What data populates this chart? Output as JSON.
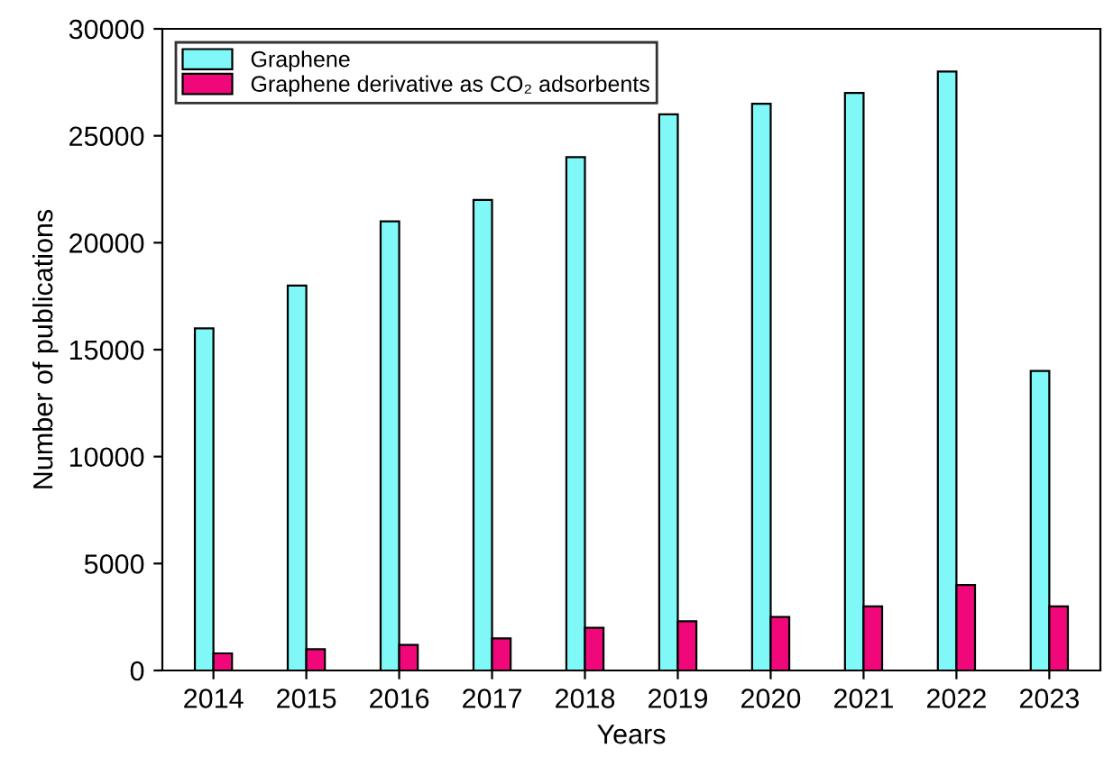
{
  "chart_data": {
    "type": "bar",
    "xlabel": "Years",
    "ylabel": "Number of publications",
    "categories": [
      "2014",
      "2015",
      "2016",
      "2017",
      "2018",
      "2019",
      "2020",
      "2021",
      "2022",
      "2023"
    ],
    "series": [
      {
        "name": "Graphene",
        "color": "#80f8f8",
        "values": [
          16000,
          18000,
          21000,
          22000,
          24000,
          26000,
          26500,
          27000,
          28000,
          14000
        ]
      },
      {
        "name": "Graphene derivative as CO₂ adsorbents",
        "color": "#f0087a",
        "values": [
          800,
          1000,
          1200,
          1500,
          2000,
          2300,
          2500,
          3000,
          4000,
          3000
        ]
      }
    ],
    "ylim": [
      0,
      30000
    ],
    "yticks": [
      0,
      5000,
      10000,
      15000,
      20000,
      25000,
      30000
    ],
    "grid": false,
    "legend": "top left"
  }
}
